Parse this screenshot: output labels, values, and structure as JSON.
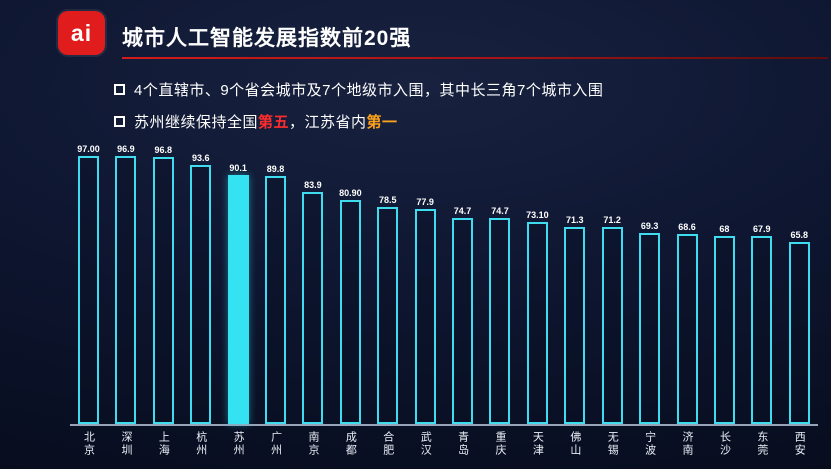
{
  "header": {
    "logo_text": "ai",
    "title": "城市人工智能发展指数前20强"
  },
  "bullets": [
    {
      "segments": [
        {
          "text": "4个直辖市、9个省会城市及7个地级市入围，其中长三角7个城市入围",
          "color": "#ffffff",
          "bold": false
        }
      ]
    },
    {
      "segments": [
        {
          "text": "苏州继续保持全国",
          "color": "#ffffff",
          "bold": false
        },
        {
          "text": "第五",
          "color": "#ff2d2d",
          "bold": true
        },
        {
          "text": "，江苏省内",
          "color": "#ffffff",
          "bold": false
        },
        {
          "text": "第一",
          "color": "#ffa21a",
          "bold": true
        }
      ]
    }
  ],
  "chart_data": {
    "type": "bar",
    "title": "城市人工智能发展指数前20强",
    "categories": [
      "北京",
      "深圳",
      "上海",
      "杭州",
      "苏州",
      "广州",
      "南京",
      "成都",
      "合肥",
      "武汉",
      "青岛",
      "重庆",
      "天津",
      "佛山",
      "无锡",
      "宁波",
      "济南",
      "长沙",
      "东莞",
      "西安"
    ],
    "values": [
      97.0,
      96.9,
      96.8,
      93.6,
      90.1,
      89.8,
      83.9,
      80.9,
      78.5,
      77.9,
      74.7,
      74.7,
      73.1,
      71.3,
      71.2,
      69.3,
      68.6,
      68,
      67.9,
      65.8
    ],
    "value_labels": [
      "97.00",
      "96.9",
      "96.8",
      "93.6",
      "90.1",
      "89.8",
      "83.9",
      "80.90",
      "78.5",
      "77.9",
      "74.7",
      "74.7",
      "73.10",
      "71.3",
      "71.2",
      "69.3",
      "68.6",
      "68",
      "67.9",
      "65.8"
    ],
    "highlight_index": 4,
    "highlight_category": "苏州",
    "xlabel": "",
    "ylabel": "",
    "ylim": [
      0,
      100
    ],
    "grid": false,
    "legend": "none"
  },
  "colors": {
    "background_dark": "#0e1631",
    "accent_red": "#e01c1c",
    "bar_outline_cyan": "#3fdcf0",
    "bar_highlight_cyan": "#35e2f2",
    "baseline_gray": "#97a3b8",
    "emphasis_orange": "#ffa21a",
    "emphasis_red": "#ff2d2d"
  }
}
